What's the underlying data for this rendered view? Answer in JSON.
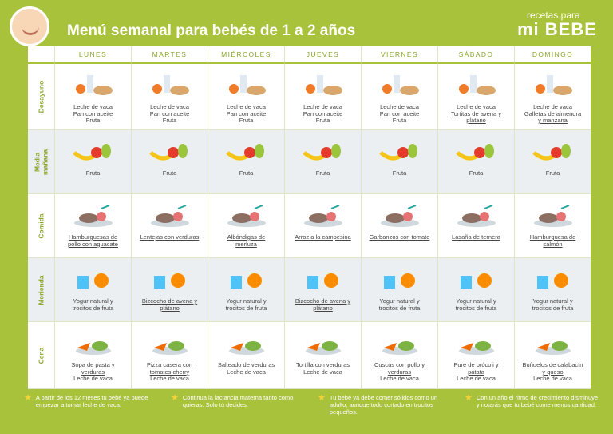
{
  "header": {
    "title": "Menú semanal para bebés de 1 a 2 años",
    "logo_small": "recetas para",
    "logo_big": "mi BEBE"
  },
  "days": [
    "LUNES",
    "MARTES",
    "MIÉRCOLES",
    "JUEVES",
    "VIERNES",
    "SÁBADO",
    "DOMINGO"
  ],
  "meals": [
    {
      "name": "Desayuno",
      "cells": [
        [
          {
            "text": "Leche de vaca"
          },
          {
            "text": "Pan con aceite"
          },
          {
            "text": "Fruta"
          }
        ],
        [
          {
            "text": "Leche de vaca"
          },
          {
            "text": "Pan con aceite"
          },
          {
            "text": "Fruta"
          }
        ],
        [
          {
            "text": "Leche de vaca"
          },
          {
            "text": "Pan con aceite"
          },
          {
            "text": "Fruta"
          }
        ],
        [
          {
            "text": "Leche de vaca"
          },
          {
            "text": "Pan con aceite"
          },
          {
            "text": "Fruta"
          }
        ],
        [
          {
            "text": "Leche de vaca"
          },
          {
            "text": "Pan con aceite"
          },
          {
            "text": "Fruta"
          }
        ],
        [
          {
            "text": "Leche de vaca"
          },
          {
            "text": "Tortitas de avena y plátano",
            "link": true
          }
        ],
        [
          {
            "text": "Leche de vaca"
          },
          {
            "text": "Galletas de almendra y manzana",
            "link": true
          }
        ]
      ]
    },
    {
      "name": "Media mañana",
      "cells": [
        [
          {
            "text": "Fruta"
          }
        ],
        [
          {
            "text": "Fruta"
          }
        ],
        [
          {
            "text": "Fruta"
          }
        ],
        [
          {
            "text": "Fruta"
          }
        ],
        [
          {
            "text": "Fruta"
          }
        ],
        [
          {
            "text": "Fruta"
          }
        ],
        [
          {
            "text": "Fruta"
          }
        ]
      ]
    },
    {
      "name": "Comida",
      "cells": [
        [
          {
            "text": "Hamburguesas de pollo con aguacate",
            "link": true
          }
        ],
        [
          {
            "text": "Lentejas con verduras",
            "link": true
          }
        ],
        [
          {
            "text": "Albóndigas de merluza",
            "link": true
          }
        ],
        [
          {
            "text": "Arroz a la campesina",
            "link": true
          }
        ],
        [
          {
            "text": "Garbanzos con tomate",
            "link": true
          }
        ],
        [
          {
            "text": "Lasaña de ternera",
            "link": true
          }
        ],
        [
          {
            "text": "Hamburguesa de salmón",
            "link": true
          }
        ]
      ]
    },
    {
      "name": "Merienda",
      "cells": [
        [
          {
            "text": "Yogur natural y trocitos de fruta"
          }
        ],
        [
          {
            "text": "Bizcocho de avena y plátano",
            "link": true
          }
        ],
        [
          {
            "text": "Yogur natural y trocitos de fruta"
          }
        ],
        [
          {
            "text": "Bizcocho de avena y plátano",
            "link": true
          }
        ],
        [
          {
            "text": "Yogur natural y trocitos de fruta"
          }
        ],
        [
          {
            "text": "Yogur natural y trocitos de fruta"
          }
        ],
        [
          {
            "text": "Yogur natural y trocitos de fruta"
          }
        ]
      ]
    },
    {
      "name": "Cena",
      "cells": [
        [
          {
            "text": "Sopa de pasta y verduras",
            "link": true
          },
          {
            "text": "Leche de vaca"
          }
        ],
        [
          {
            "text": "Pizza casera con tomates cherry",
            "link": true
          },
          {
            "text": "Leche de vaca"
          }
        ],
        [
          {
            "text": "Salteado de verduras",
            "link": true
          },
          {
            "text": "Leche de vaca"
          }
        ],
        [
          {
            "text": "Tortilla con verduras",
            "link": true
          },
          {
            "text": "Leche de vaca"
          }
        ],
        [
          {
            "text": "Cuscús con pollo y verduras",
            "link": true
          },
          {
            "text": "Leche de vaca"
          }
        ],
        [
          {
            "text": "Puré de brócoli y patata",
            "link": true
          },
          {
            "text": "Leche de vaca"
          }
        ],
        [
          {
            "text": "Buñuelos de calabacín y queso",
            "link": true
          },
          {
            "text": "Leche de vaca"
          }
        ]
      ]
    }
  ],
  "notes": [
    "A partir de los 12 meses tu bebé ya puede empezar a tomar leche de vaca.",
    "Continua la lactancia materna tanto como quieras. Solo tú decides.",
    "Tu bebé ya debe comer sólidos como un adulto, aunque todo cortado en trocitos pequeños.",
    "Con un año el ritmo de crecimiento disminuye y notarás que tu bebé come menos cantidad."
  ]
}
